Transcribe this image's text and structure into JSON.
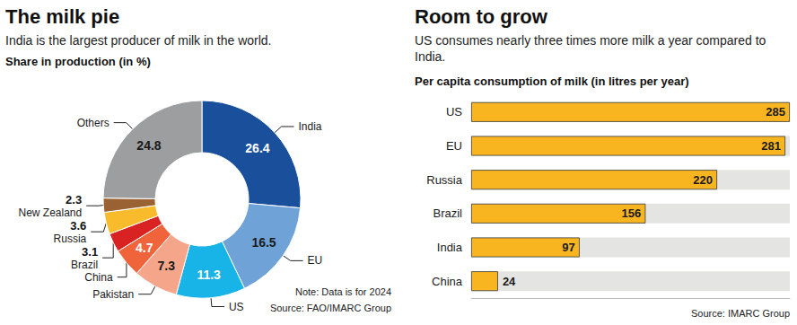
{
  "chart_data": [
    {
      "type": "pie",
      "title": "The milk pie",
      "subtitle": "India is the largest producer of milk in the world.",
      "unit_label": "Share in production (in %)",
      "categories": [
        "India",
        "EU",
        "US",
        "Pakistan",
        "China",
        "Brazil",
        "Russia",
        "New Zealand",
        "Others"
      ],
      "values": [
        26.4,
        16.5,
        11.3,
        7.3,
        4.7,
        3.1,
        3.6,
        2.3,
        24.8
      ],
      "colors": [
        "#1a4f9c",
        "#6fa3d8",
        "#18b4e8",
        "#f4a58a",
        "#f0643c",
        "#d92323",
        "#f7bb2c",
        "#9a6133",
        "#9c9e9f"
      ],
      "data_labels": true,
      "annotations": [
        "Note: Data is for 2024",
        "Source: FAO/IMARC Group"
      ]
    },
    {
      "type": "bar",
      "orientation": "horizontal",
      "title": "Room to grow",
      "subtitle": "US consumes nearly three times more milk a year compared to India.",
      "xlabel": "Per capita consumption of milk (in litres per year)",
      "categories": [
        "US",
        "EU",
        "Russia",
        "Brazil",
        "India",
        "China"
      ],
      "values": [
        285,
        281,
        220,
        156,
        97,
        24
      ],
      "color": "#f9b520",
      "xlim": [
        0,
        285
      ],
      "tick_labels": "y",
      "grid": false,
      "data_labels": true,
      "annotations": [
        "Source: IMARC Group"
      ]
    }
  ]
}
